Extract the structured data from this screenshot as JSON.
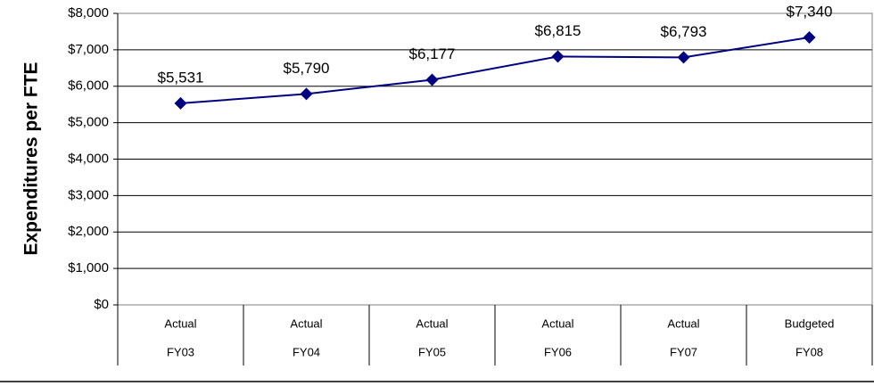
{
  "chart_data": {
    "type": "line",
    "y_axis_label": "Expenditures per FTE",
    "categories": [
      [
        "Actual",
        "FY03"
      ],
      [
        "Actual",
        "FY04"
      ],
      [
        "Actual",
        "FY05"
      ],
      [
        "Actual",
        "FY06"
      ],
      [
        "Actual",
        "FY07"
      ],
      [
        "Budgeted",
        "FY08"
      ]
    ],
    "values": [
      5531,
      5790,
      6177,
      6815,
      6793,
      7340
    ],
    "value_labels": [
      "$5,531",
      "$5,790",
      "$6,177",
      "$6,815",
      "$6,793",
      "$7,340"
    ],
    "color": "#000080",
    "ylim": [
      0,
      8000
    ],
    "yticks": [
      {
        "value": 0,
        "label": "$0"
      },
      {
        "value": 1000,
        "label": "$1,000"
      },
      {
        "value": 2000,
        "label": "$2,000"
      },
      {
        "value": 3000,
        "label": "$3,000"
      },
      {
        "value": 4000,
        "label": "$4,000"
      },
      {
        "value": 5000,
        "label": "$5,000"
      },
      {
        "value": 6000,
        "label": "$6,000"
      },
      {
        "value": 7000,
        "label": "$7,000"
      },
      {
        "value": 8000,
        "label": "$8,000"
      }
    ],
    "grid": true
  }
}
